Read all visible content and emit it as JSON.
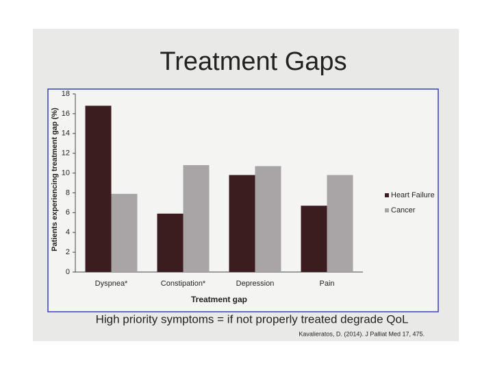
{
  "chart_data": {
    "type": "bar",
    "title": "Treatment Gaps",
    "y_label": "Patients experiencing treatment gap (%)",
    "x_label": "Treatment gap",
    "categories": [
      "Dyspnea*",
      "Constipation*",
      "Depression",
      "Pain"
    ],
    "series": [
      {
        "name": "Heart Failure",
        "color": "#3b1d20",
        "values": [
          16.8,
          5.9,
          9.8,
          6.7
        ]
      },
      {
        "name": "Cancer",
        "color": "#a9a5a6",
        "values": [
          7.9,
          10.8,
          10.7,
          9.8
        ]
      }
    ],
    "ylim": [
      0,
      18
    ],
    "yticks": [
      0,
      2,
      4,
      6,
      8,
      10,
      12,
      14,
      16,
      18
    ],
    "legend": "right",
    "caption": "High priority symptoms = if not properly treated degrade QoL",
    "source": "Kavalieratos, D. (2014). J Palliat Med 17, 475."
  }
}
